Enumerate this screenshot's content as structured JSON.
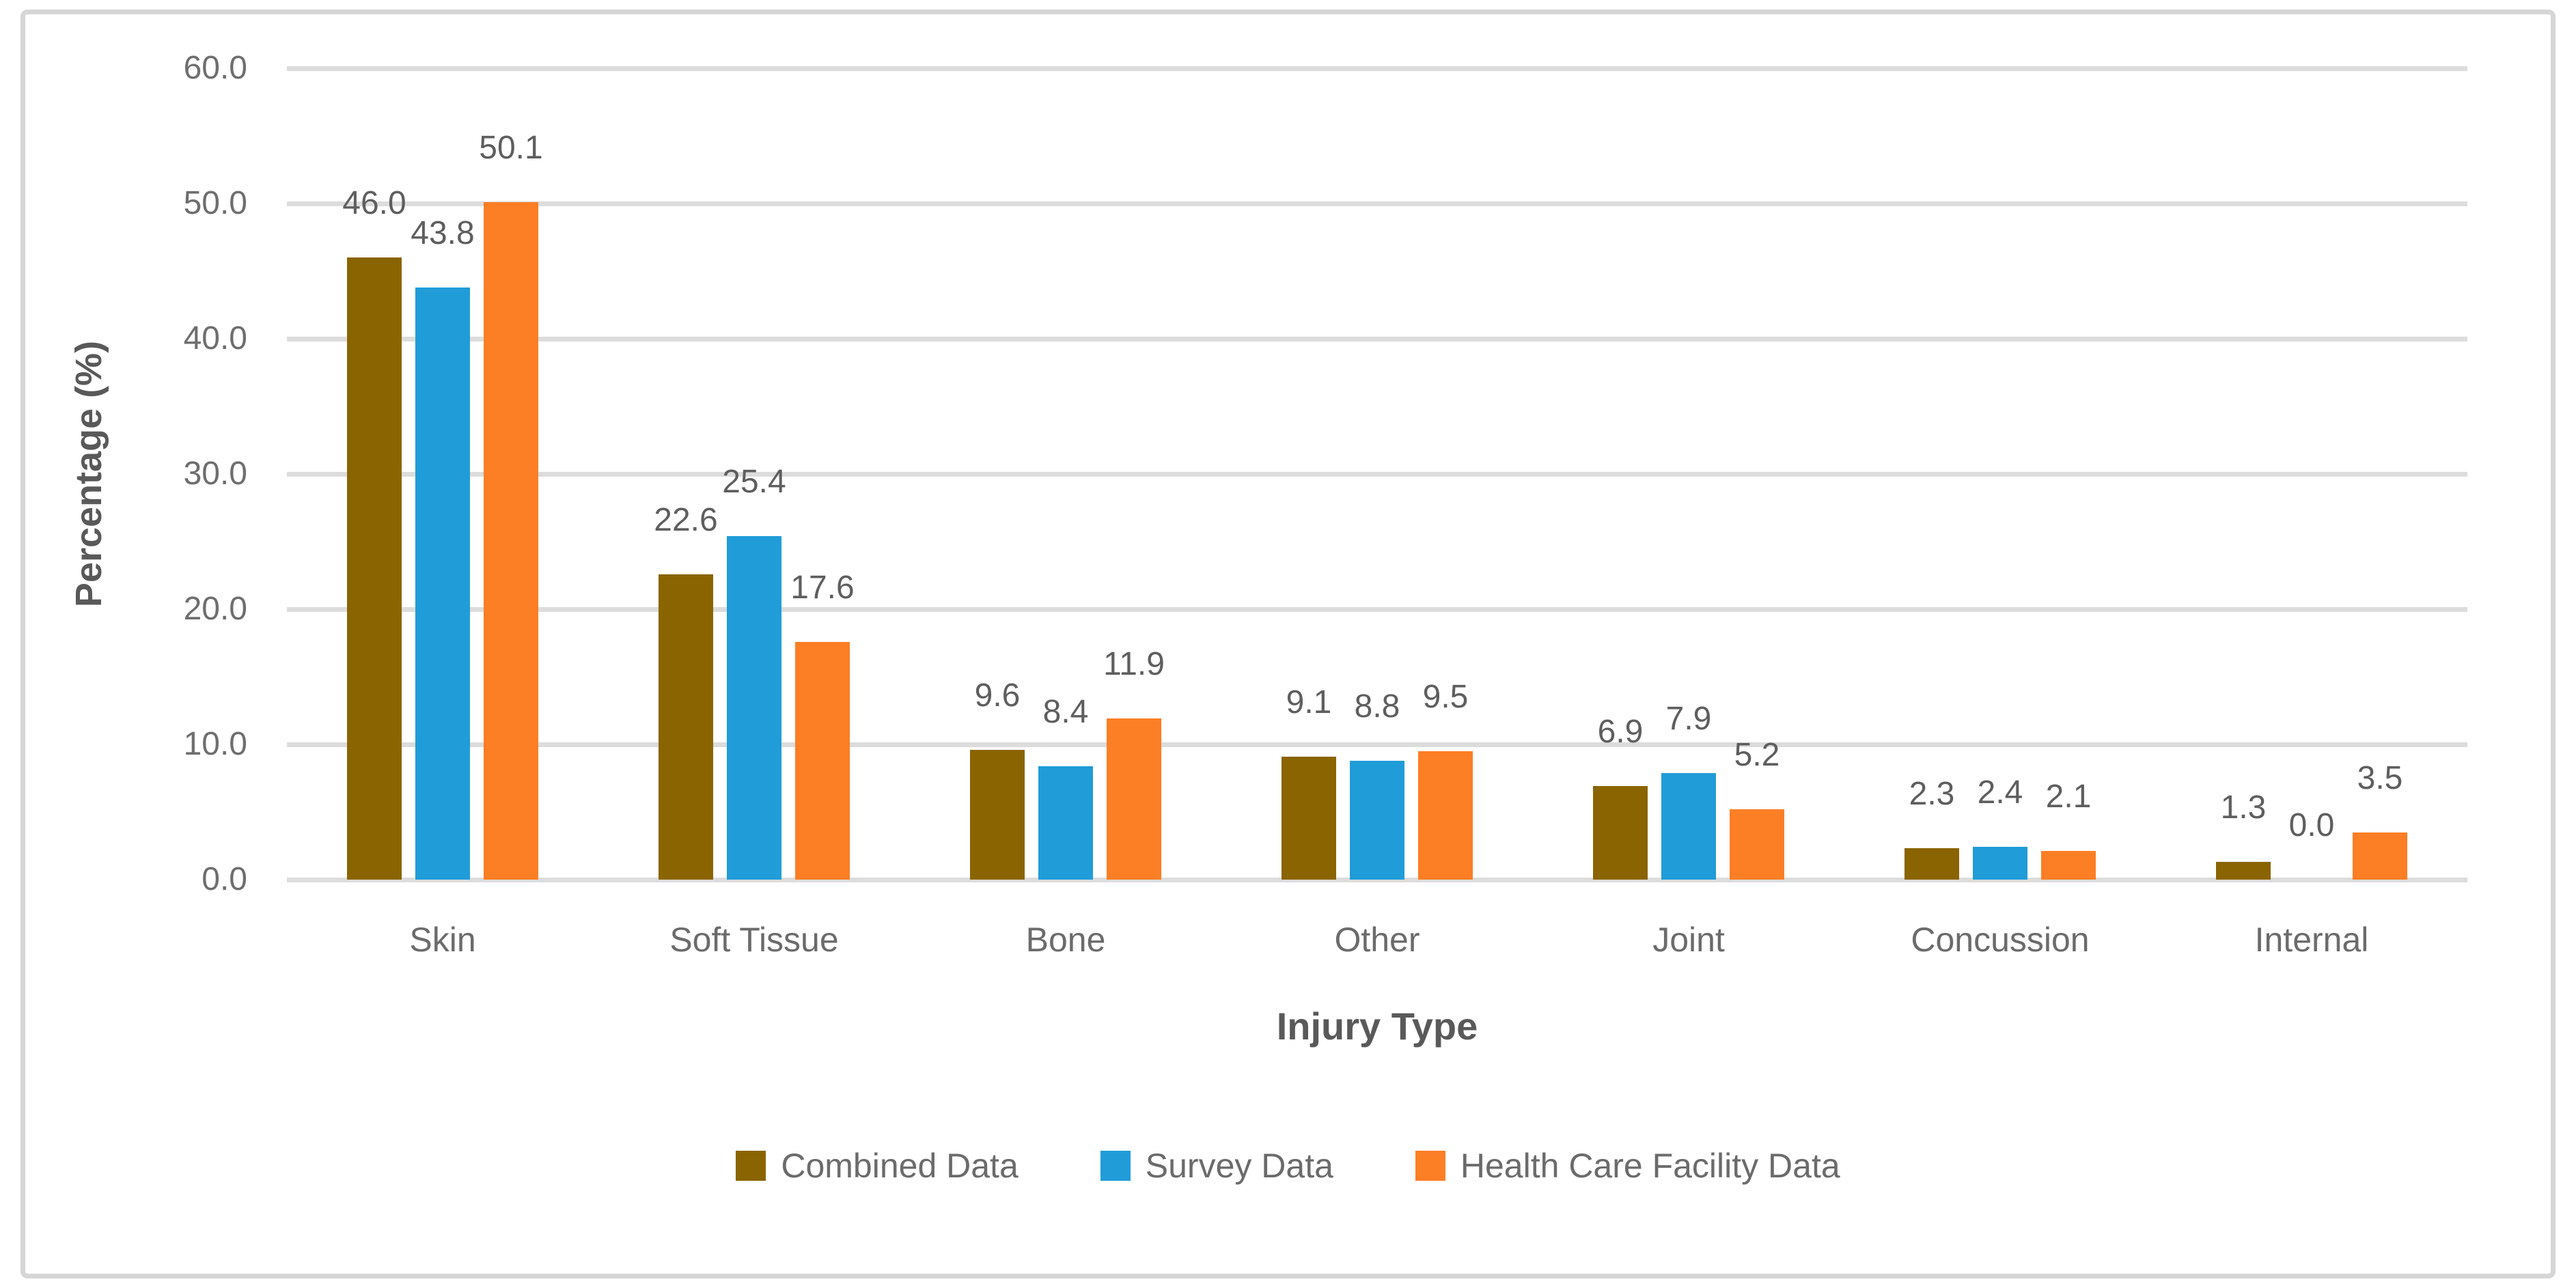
{
  "chart_data": {
    "type": "bar",
    "title": "",
    "xlabel": "Injury Type",
    "ylabel": "Percentage (%)",
    "ylim": [
      0,
      60
    ],
    "ytick_labels": [
      "0.0",
      "10.0",
      "20.0",
      "30.0",
      "40.0",
      "50.0",
      "60.0"
    ],
    "grid": true,
    "legend_position": "bottom",
    "categories": [
      "Skin",
      "Soft Tissue",
      "Bone",
      "Other",
      "Joint",
      "Concussion",
      "Internal"
    ],
    "series": [
      {
        "name": "Combined Data",
        "color": "#8A6400",
        "values": [
          46.0,
          22.6,
          9.6,
          9.1,
          6.9,
          2.3,
          1.3
        ],
        "labels": [
          "46.0",
          "22.6",
          "9.6",
          "9.1",
          "6.9",
          "2.3",
          "1.3"
        ]
      },
      {
        "name": "Survey Data",
        "color": "#209CD9",
        "values": [
          43.8,
          25.4,
          8.4,
          8.8,
          7.9,
          2.4,
          0.0
        ],
        "labels": [
          "43.8",
          "25.4",
          "8.4",
          "8.8",
          "7.9",
          "2.4",
          "0.0"
        ]
      },
      {
        "name": "Health Care Facility Data",
        "color": "#FC7E25",
        "values": [
          50.1,
          17.6,
          11.9,
          9.5,
          5.2,
          2.1,
          3.5
        ],
        "labels": [
          "50.1",
          "17.6",
          "11.9",
          "9.5",
          "5.2",
          "2.1",
          "3.5"
        ]
      }
    ]
  },
  "colors": {
    "grid": "#DCDCDC",
    "frame_border": "#D6D6D6",
    "tick_text": "#6E6E6E",
    "label_text": "#5E5E5E",
    "axis_title_text": "#595959",
    "background": "#FFFFFF"
  }
}
